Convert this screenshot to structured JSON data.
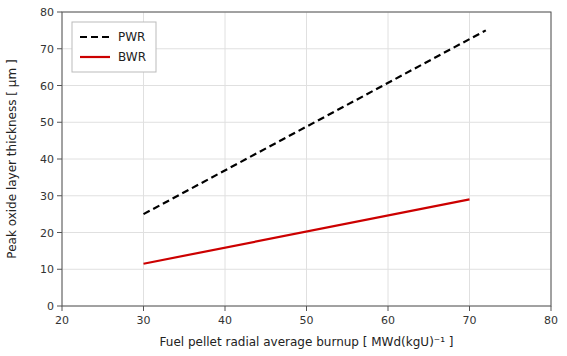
{
  "chart_data": {
    "type": "line",
    "xlabel": "Fuel pellet radial average burnup [ MWd(kgU)⁻¹ ]",
    "ylabel": "Peak oxide layer thickness [ μm ]",
    "xlim": [
      20,
      80
    ],
    "ylim": [
      0,
      80
    ],
    "xticks": [
      20,
      30,
      40,
      50,
      60,
      70,
      80
    ],
    "yticks": [
      0,
      10,
      20,
      30,
      40,
      50,
      60,
      70,
      80
    ],
    "grid": true,
    "legend": "upper left",
    "series": [
      {
        "name": "PWR",
        "color": "#000000",
        "line_style": "dashed",
        "x": [
          30,
          72
        ],
        "values": [
          25,
          75
        ]
      },
      {
        "name": "BWR",
        "color": "#cc0000",
        "line_style": "solid",
        "x": [
          30,
          70
        ],
        "values": [
          11.5,
          29
        ]
      }
    ]
  }
}
